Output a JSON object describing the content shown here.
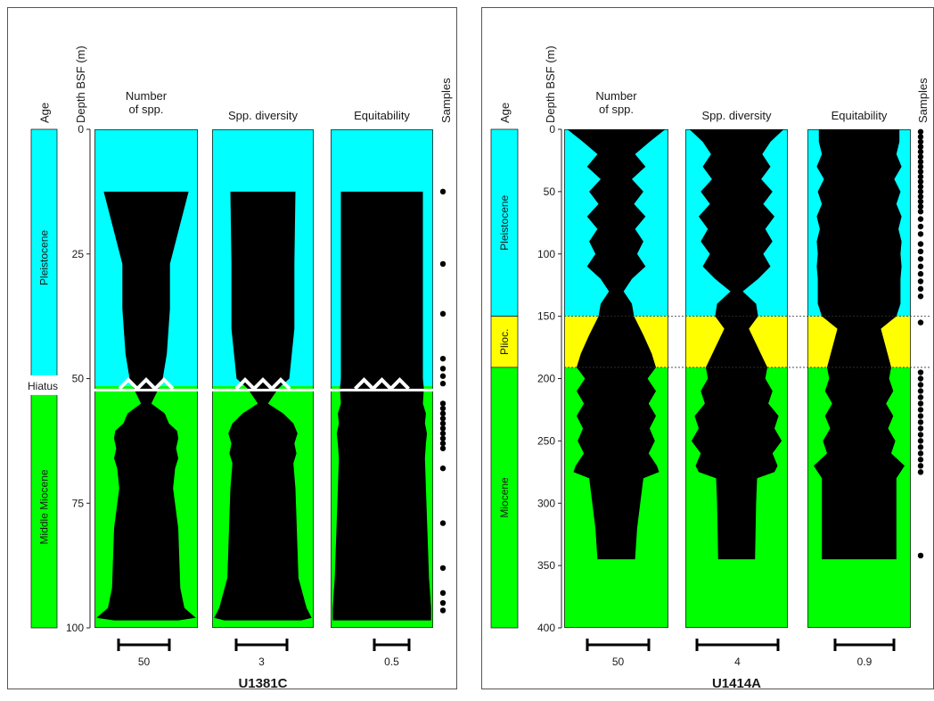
{
  "colors": {
    "pleistocene": "#00ffff",
    "pliocene": "#ffff00",
    "miocene": "#00ff00",
    "profile": "#000000",
    "hiatus": "#ffffff"
  },
  "headers": {
    "age": "Age",
    "depth": "Depth BSF (m)",
    "number_line1": "Number",
    "number_line2": "of spp.",
    "diversity": "Spp. diversity",
    "equitability": "Equitability",
    "samples": "Samples"
  },
  "chart_data": [
    {
      "type": "area",
      "site": "U1381C",
      "y_label": "Depth BSF (m)",
      "y_range": [
        0,
        100
      ],
      "y_ticks": [
        0,
        25,
        50,
        75,
        100
      ],
      "ages": [
        {
          "label": "Pleistocene",
          "from": 0,
          "to": 51.5,
          "color": "#00ffff"
        },
        {
          "label": "Middle Miocene",
          "from": 51.5,
          "to": 100,
          "color": "#00ff00"
        }
      ],
      "hiatus": {
        "label": "Hiatus",
        "depth": 51.5
      },
      "columns": [
        {
          "label": "Number of spp.",
          "scale_value": "50",
          "scale_fraction": 0.5,
          "profile": [
            [
              12.5,
              0.82
            ],
            [
              27,
              0.46
            ],
            [
              36,
              0.46
            ],
            [
              45,
              0.4
            ],
            [
              50,
              0.32
            ],
            [
              52,
              0.24
            ],
            [
              55,
              0.1
            ],
            [
              57,
              0.36
            ],
            [
              59,
              0.44
            ],
            [
              60.5,
              0.6
            ],
            [
              62,
              0.62
            ],
            [
              64,
              0.58
            ],
            [
              66,
              0.62
            ],
            [
              68,
              0.56
            ],
            [
              72,
              0.52
            ],
            [
              80,
              0.62
            ],
            [
              92,
              0.66
            ],
            [
              96,
              0.74
            ],
            [
              98,
              0.96
            ],
            [
              98.5,
              0.62
            ]
          ]
        },
        {
          "label": "Spp. diversity",
          "scale_value": "3",
          "scale_fraction": 0.55,
          "profile": [
            [
              12.5,
              0.64
            ],
            [
              27,
              0.62
            ],
            [
              40,
              0.62
            ],
            [
              50,
              0.52
            ],
            [
              52,
              0.3
            ],
            [
              55,
              0.1
            ],
            [
              57,
              0.4
            ],
            [
              59,
              0.6
            ],
            [
              61,
              0.68
            ],
            [
              63,
              0.62
            ],
            [
              65,
              0.66
            ],
            [
              67,
              0.6
            ],
            [
              72,
              0.64
            ],
            [
              90,
              0.7
            ],
            [
              96,
              0.86
            ],
            [
              98,
              0.96
            ],
            [
              98.5,
              0.76
            ]
          ]
        },
        {
          "label": "Equitability",
          "scale_value": "0.5",
          "scale_fraction": 0.33,
          "profile": [
            [
              12.5,
              0.8
            ],
            [
              30,
              0.8
            ],
            [
              50,
              0.8
            ],
            [
              52,
              0.82
            ],
            [
              55,
              0.8
            ],
            [
              57,
              0.86
            ],
            [
              59,
              0.84
            ],
            [
              61,
              0.88
            ],
            [
              63,
              0.86
            ],
            [
              66,
              0.84
            ],
            [
              72,
              0.86
            ],
            [
              90,
              0.92
            ],
            [
              96,
              0.96
            ],
            [
              98.5,
              0.96
            ]
          ]
        }
      ],
      "samples": [
        12.5,
        27,
        37,
        46,
        48,
        49.5,
        51,
        55,
        56,
        57,
        58,
        59,
        60,
        61,
        62,
        63,
        64,
        68,
        79,
        88,
        93,
        95,
        96.5
      ]
    },
    {
      "type": "area",
      "site": "U1414A",
      "y_label": "Depth BSF (m)",
      "y_range": [
        0,
        400
      ],
      "y_ticks": [
        0,
        50,
        100,
        150,
        200,
        250,
        300,
        350,
        400
      ],
      "ages": [
        {
          "label": "Pleistocene",
          "from": 0,
          "to": 150,
          "color": "#00ffff"
        },
        {
          "label": "Plioc.",
          "from": 150,
          "to": 191,
          "color": "#ffff00"
        },
        {
          "label": "Miocene",
          "from": 191,
          "to": 400,
          "color": "#00ff00"
        }
      ],
      "boundaries": [
        150,
        191
      ],
      "columns": [
        {
          "label": "Number of spp.",
          "scale_value": "50",
          "scale_fraction": 0.6,
          "profile": [
            [
              0,
              0.94
            ],
            [
              10,
              0.64
            ],
            [
              20,
              0.36
            ],
            [
              30,
              0.56
            ],
            [
              40,
              0.3
            ],
            [
              50,
              0.52
            ],
            [
              60,
              0.34
            ],
            [
              70,
              0.56
            ],
            [
              80,
              0.36
            ],
            [
              90,
              0.52
            ],
            [
              100,
              0.4
            ],
            [
              110,
              0.56
            ],
            [
              120,
              0.3
            ],
            [
              130,
              0.14
            ],
            [
              140,
              0.3
            ],
            [
              150,
              0.34
            ],
            [
              165,
              0.52
            ],
            [
              180,
              0.68
            ],
            [
              191,
              0.76
            ],
            [
              200,
              0.6
            ],
            [
              210,
              0.76
            ],
            [
              220,
              0.62
            ],
            [
              230,
              0.76
            ],
            [
              240,
              0.64
            ],
            [
              250,
              0.74
            ],
            [
              260,
              0.62
            ],
            [
              270,
              0.78
            ],
            [
              275,
              0.82
            ],
            [
              280,
              0.52
            ],
            [
              300,
              0.46
            ],
            [
              320,
              0.4
            ],
            [
              345,
              0.36
            ]
          ]
        },
        {
          "label": "Spp. diversity",
          "scale_value": "4",
          "scale_fraction": 0.8,
          "profile": [
            [
              0,
              0.92
            ],
            [
              10,
              0.66
            ],
            [
              20,
              0.5
            ],
            [
              30,
              0.66
            ],
            [
              40,
              0.48
            ],
            [
              50,
              0.7
            ],
            [
              60,
              0.52
            ],
            [
              70,
              0.74
            ],
            [
              80,
              0.56
            ],
            [
              90,
              0.7
            ],
            [
              100,
              0.52
            ],
            [
              110,
              0.66
            ],
            [
              120,
              0.42
            ],
            [
              130,
              0.12
            ],
            [
              140,
              0.38
            ],
            [
              150,
              0.42
            ],
            [
              160,
              0.24
            ],
            [
              191,
              0.6
            ],
            [
              200,
              0.56
            ],
            [
              210,
              0.7
            ],
            [
              220,
              0.62
            ],
            [
              230,
              0.82
            ],
            [
              240,
              0.74
            ],
            [
              250,
              0.88
            ],
            [
              260,
              0.7
            ],
            [
              270,
              0.8
            ],
            [
              275,
              0.74
            ],
            [
              280,
              0.4
            ],
            [
              300,
              0.38
            ],
            [
              345,
              0.36
            ]
          ]
        },
        {
          "label": "Equitability",
          "scale_value": "0.9",
          "scale_fraction": 0.56,
          "profile": [
            [
              0,
              0.78
            ],
            [
              10,
              0.78
            ],
            [
              20,
              0.72
            ],
            [
              30,
              0.82
            ],
            [
              40,
              0.68
            ],
            [
              50,
              0.8
            ],
            [
              60,
              0.72
            ],
            [
              70,
              0.82
            ],
            [
              80,
              0.76
            ],
            [
              90,
              0.82
            ],
            [
              100,
              0.8
            ],
            [
              110,
              0.82
            ],
            [
              120,
              0.8
            ],
            [
              140,
              0.8
            ],
            [
              150,
              0.72
            ],
            [
              160,
              0.42
            ],
            [
              191,
              0.62
            ],
            [
              200,
              0.58
            ],
            [
              210,
              0.66
            ],
            [
              220,
              0.52
            ],
            [
              230,
              0.66
            ],
            [
              240,
              0.56
            ],
            [
              250,
              0.7
            ],
            [
              260,
              0.62
            ],
            [
              270,
              0.88
            ],
            [
              275,
              0.8
            ],
            [
              280,
              0.72
            ],
            [
              300,
              0.72
            ],
            [
              345,
              0.72
            ]
          ]
        }
      ],
      "samples": [
        2,
        6,
        10,
        14,
        18,
        22,
        26,
        30,
        34,
        38,
        42,
        46,
        50,
        54,
        58,
        62,
        66,
        72,
        78,
        84,
        92,
        98,
        104,
        110,
        116,
        122,
        128,
        134,
        155,
        195,
        200,
        205,
        210,
        215,
        220,
        225,
        230,
        235,
        240,
        245,
        250,
        255,
        260,
        265,
        270,
        275,
        342
      ]
    }
  ]
}
